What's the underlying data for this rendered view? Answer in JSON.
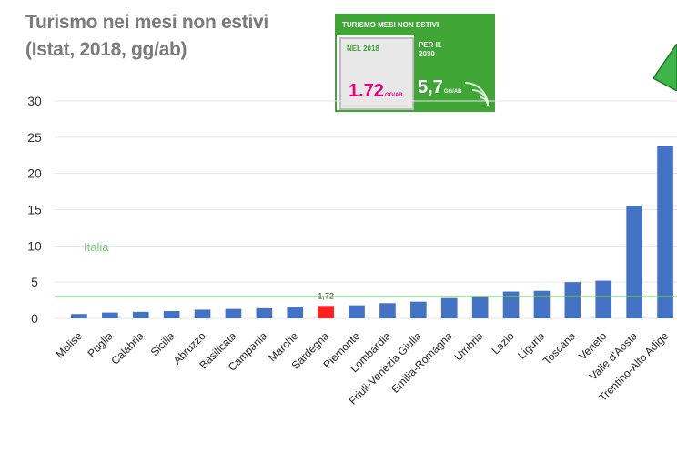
{
  "header": {
    "title_line1": "Turismo nei mesi non estivi",
    "title_line2": "(Istat, 2018, gg/ab)"
  },
  "infobox": {
    "header": "TURISMO MESI NON ESTIVI",
    "left_label": "NEL 2018",
    "left_value": "1.72",
    "left_unit": "GG/AB",
    "right_label": "PER IL 2030",
    "right_value": "5,7",
    "right_unit": "GG/AB"
  },
  "colors": {
    "bar": "#4472c4",
    "highlight": "#ff2020",
    "reference": "#7ec87e",
    "accent": "#3fa535",
    "magenta": "#e6007e"
  },
  "chart_data": {
    "type": "bar",
    "categories": [
      "Molise",
      "Puglia",
      "Calabria",
      "Sicilia",
      "Abruzzo",
      "Basilicata",
      "Campania",
      "Marche",
      "Sardegna",
      "Piemonte",
      "Lombardia",
      "Friuli-Venezia Giulia",
      "Emilia-Romagna",
      "Umbria",
      "Lazio",
      "Liguria",
      "Toscana",
      "Veneto",
      "Valle d'Aosta",
      "Trentino-Alto Adige"
    ],
    "values": [
      0.6,
      0.8,
      0.9,
      1.0,
      1.2,
      1.3,
      1.4,
      1.6,
      1.72,
      1.8,
      2.1,
      2.3,
      2.8,
      3.1,
      3.7,
      3.8,
      5.0,
      5.2,
      15.5,
      23.8
    ],
    "highlight_index": 8,
    "highlight_label": "1,72",
    "reference_line": {
      "label": "Italia",
      "value": 3.0
    },
    "ylim": [
      0,
      30
    ],
    "yticks": [
      0,
      5,
      10,
      15,
      20,
      25,
      30
    ],
    "grid": true
  }
}
